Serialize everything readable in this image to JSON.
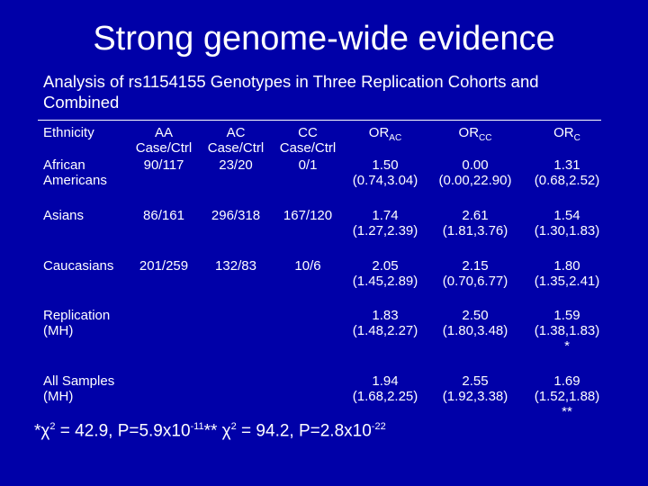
{
  "title": "Strong genome-wide evidence",
  "subtitle": [
    "Analysis of rs1154155 Genotypes in Three Replication Cohorts and",
    "Combined"
  ],
  "table": {
    "header": [
      {
        "lines": [
          "Ethnicity"
        ]
      },
      {
        "lines": [
          "AA",
          "Case/Ctrl"
        ]
      },
      {
        "lines": [
          "AC",
          "Case/Ctrl"
        ]
      },
      {
        "lines": [
          "CC",
          "Case/Ctrl"
        ]
      },
      {
        "text": "OR",
        "sub": "AC"
      },
      {
        "text": "OR",
        "sub": "CC"
      },
      {
        "text": "OR",
        "sub": "C"
      }
    ],
    "rows": [
      {
        "cells": [
          [
            "African",
            "Americans"
          ],
          [
            "90/117"
          ],
          [
            "23/20"
          ],
          [
            "0/1"
          ],
          [
            "1.50",
            "(0.74,3.04)"
          ],
          [
            "0.00",
            "(0.00,22.90)"
          ],
          [
            "1.31",
            "(0.68,2.52)"
          ]
        ]
      },
      {
        "cells": [
          [
            "Asians"
          ],
          [
            "86/161"
          ],
          [
            "296/318"
          ],
          [
            "167/120"
          ],
          [
            "1.74",
            "(1.27,2.39)"
          ],
          [
            "2.61",
            "(1.81,3.76)"
          ],
          [
            "1.54",
            "(1.30,1.83)"
          ]
        ]
      },
      {
        "cells": [
          [
            "Caucasians"
          ],
          [
            "201/259"
          ],
          [
            "132/83"
          ],
          [
            "10/6"
          ],
          [
            "2.05",
            "(1.45,2.89)"
          ],
          [
            "2.15",
            "(0.70,6.77)"
          ],
          [
            "1.80",
            "(1.35,2.41)"
          ]
        ]
      },
      {
        "cells": [
          [
            "Replication",
            "(MH)"
          ],
          [],
          [],
          [],
          [
            "1.83",
            "(1.48,2.27)"
          ],
          [
            "2.50",
            "(1.80,3.48)"
          ],
          [
            "1.59",
            "(1.38,1.83)"
          ]
        ],
        "note": "*"
      },
      {
        "cells": [
          [
            "All Samples",
            "(MH)"
          ],
          [],
          [],
          [],
          [
            "1.94",
            "(1.68,2.25)"
          ],
          [
            "2.55",
            "(1.92,3.38)"
          ],
          [
            "1.69",
            "(1.52,1.88)"
          ]
        ],
        "note": "**"
      }
    ]
  },
  "footnote": [
    {
      "text": "*χ"
    },
    {
      "sup": "2"
    },
    {
      "text": " = 42.9, P=5.9x10"
    },
    {
      "sup": "-11"
    },
    {
      "text": "** χ"
    },
    {
      "sup": "2"
    },
    {
      "text": " = 94.2, P=2.8x10"
    },
    {
      "sup": "-22"
    }
  ]
}
